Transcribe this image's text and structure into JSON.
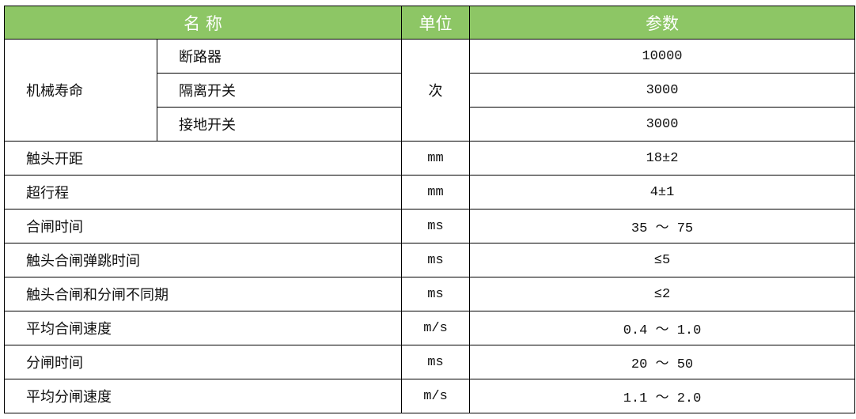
{
  "header": {
    "name": "名 称",
    "unit": "单位",
    "param": "参数"
  },
  "mechanical_life": {
    "label": "机械寿命",
    "unit": "次",
    "items": [
      {
        "name": "断路器",
        "value": "10000"
      },
      {
        "name": "隔离开关",
        "value": "3000"
      },
      {
        "name": "接地开关",
        "value": "3000"
      }
    ]
  },
  "rows": [
    {
      "name": "触头开距",
      "unit": "mm",
      "value": "18±2"
    },
    {
      "name": "超行程",
      "unit": "mm",
      "value": "4±1"
    },
    {
      "name": "合闸时间",
      "unit": "ms",
      "value": "35 ～ 75"
    },
    {
      "name": "触头合闸弹跳时间",
      "unit": "ms",
      "value": "≤5"
    },
    {
      "name": "触头合闸和分闸不同期",
      "unit": "ms",
      "value": "≤2"
    },
    {
      "name": "平均合闸速度",
      "unit": "m/s",
      "value": "0.4 ～ 1.0"
    },
    {
      "name": "分闸时间",
      "unit": "ms",
      "value": "20 ～ 50"
    },
    {
      "name": "平均分闸速度",
      "unit": "m/s",
      "value": "1.1 ～ 2.0"
    }
  ],
  "colors": {
    "header_bg": "#8dc665",
    "header_text": "#ffffff"
  }
}
